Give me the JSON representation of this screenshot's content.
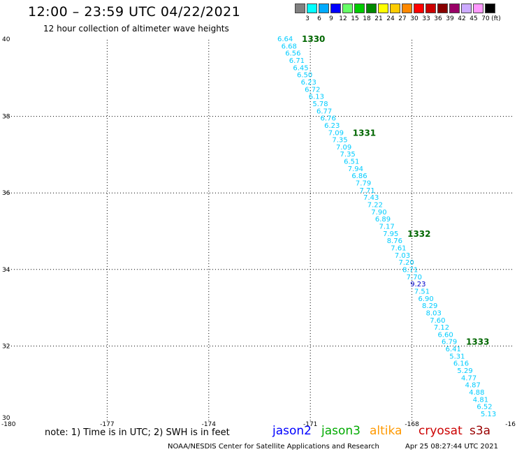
{
  "header": {
    "title": "12:00 – 23:59 UTC 04/22/2021",
    "subtitle": "12 hour collection of altimeter wave heights"
  },
  "legend": {
    "unit": "(ft)",
    "items": [
      {
        "label": "3",
        "color": "#808080"
      },
      {
        "label": "6",
        "color": "#00ffff"
      },
      {
        "label": "9",
        "color": "#00aaff"
      },
      {
        "label": "12",
        "color": "#0000ff"
      },
      {
        "label": "15",
        "color": "#66ff66"
      },
      {
        "label": "18",
        "color": "#00cc00"
      },
      {
        "label": "21",
        "color": "#008800"
      },
      {
        "label": "24",
        "color": "#ffff00"
      },
      {
        "label": "27",
        "color": "#ffcc00"
      },
      {
        "label": "30",
        "color": "#ff8800"
      },
      {
        "label": "33",
        "color": "#ff0000"
      },
      {
        "label": "36",
        "color": "#cc0000"
      },
      {
        "label": "39",
        "color": "#880000"
      },
      {
        "label": "42",
        "color": "#990066"
      },
      {
        "label": "45",
        "color": "#ccaaff"
      },
      {
        "label": "70",
        "color": "#ff99ff"
      },
      {
        "label": "",
        "color": "#000000"
      }
    ]
  },
  "map": {
    "lon_range": [
      -180,
      -165
    ],
    "lat_range": [
      30,
      40
    ],
    "lon_labels": [
      "-180",
      "-177",
      "-174",
      "-171",
      "-168",
      "-16"
    ],
    "lat_labels": [
      "40",
      "38",
      "36",
      "34",
      "32",
      "30"
    ],
    "colors": {
      "light": "#00ccff",
      "mid": "#0099dd",
      "dark": "#0000cc",
      "time": "#006600"
    },
    "track": [
      {
        "v": "6.64",
        "c": "light"
      },
      {
        "v": "6.68",
        "c": "light"
      },
      {
        "v": "6.56",
        "c": "light"
      },
      {
        "v": "6.71",
        "c": "light"
      },
      {
        "v": "6.45",
        "c": "light"
      },
      {
        "v": "6.50",
        "c": "light"
      },
      {
        "v": "6.23",
        "c": "light"
      },
      {
        "v": "6.72",
        "c": "light"
      },
      {
        "v": "6.13",
        "c": "light"
      },
      {
        "v": "5.78",
        "c": "light"
      },
      {
        "v": "6.77",
        "c": "light"
      },
      {
        "v": "6.76",
        "c": "light"
      },
      {
        "v": "6.23",
        "c": "light"
      },
      {
        "v": "7.09",
        "c": "light"
      },
      {
        "v": "7.35",
        "c": "light"
      },
      {
        "v": "7.09",
        "c": "light"
      },
      {
        "v": "7.35",
        "c": "light"
      },
      {
        "v": "6.51",
        "c": "light"
      },
      {
        "v": "7.94",
        "c": "light"
      },
      {
        "v": "6.86",
        "c": "light"
      },
      {
        "v": "7.79",
        "c": "light"
      },
      {
        "v": "7.71",
        "c": "light"
      },
      {
        "v": "7.43",
        "c": "light"
      },
      {
        "v": "7.22",
        "c": "light"
      },
      {
        "v": "7.90",
        "c": "light"
      },
      {
        "v": "6.89",
        "c": "light"
      },
      {
        "v": "7.17",
        "c": "light"
      },
      {
        "v": "7.95",
        "c": "light"
      },
      {
        "v": "8.76",
        "c": "light"
      },
      {
        "v": "7.61",
        "c": "light"
      },
      {
        "v": "7.03",
        "c": "light"
      },
      {
        "v": "7.20",
        "c": "light"
      },
      {
        "v": "8.71",
        "c": "light"
      },
      {
        "v": "7.70",
        "c": "light"
      },
      {
        "v": "9.23",
        "c": "dark"
      },
      {
        "v": "7.51",
        "c": "light"
      },
      {
        "v": "6.90",
        "c": "light"
      },
      {
        "v": "8.29",
        "c": "light"
      },
      {
        "v": "8.03",
        "c": "light"
      },
      {
        "v": "7.60",
        "c": "light"
      },
      {
        "v": "7.12",
        "c": "light"
      },
      {
        "v": "6.60",
        "c": "light"
      },
      {
        "v": "6.79",
        "c": "light"
      },
      {
        "v": "6.41",
        "c": "light"
      },
      {
        "v": "5.31",
        "c": "light"
      },
      {
        "v": "6.16",
        "c": "light"
      },
      {
        "v": "5.29",
        "c": "light"
      },
      {
        "v": "4.77",
        "c": "light"
      },
      {
        "v": "4.87",
        "c": "light"
      },
      {
        "v": "4.88",
        "c": "light"
      },
      {
        "v": "4.81",
        "c": "light"
      },
      {
        "v": "6.52",
        "c": "light"
      },
      {
        "v": "5.13",
        "c": "light"
      }
    ],
    "time_markers": [
      {
        "label": "1330",
        "index": 0
      },
      {
        "label": "1331",
        "index": 13
      },
      {
        "label": "1332",
        "index": 27
      },
      {
        "label": "1333",
        "index": 42
      }
    ]
  },
  "footer": {
    "note": "note:  1) Time is in UTC;  2) SWH is in feet",
    "satellites": [
      {
        "name": "jason2",
        "color": "#0000ff"
      },
      {
        "name": "jason3",
        "color": "#00aa00"
      },
      {
        "name": "altika",
        "color": "#ff9900"
      },
      {
        "name": "cryosat",
        "color": "#cc0000"
      },
      {
        "name": "s3a",
        "color": "#990000"
      }
    ],
    "credit": "NOAA/NESDIS Center for Satellite Applications and Research",
    "date": "Apr 25 08:27:44 UTC 2021"
  }
}
